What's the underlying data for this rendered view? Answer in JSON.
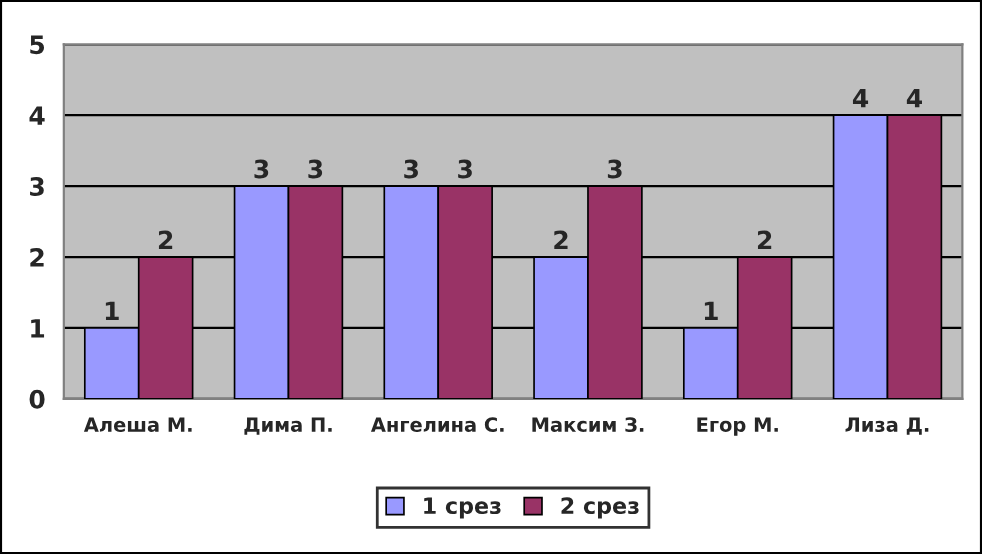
{
  "chart_data": {
    "type": "bar",
    "categories": [
      "Алеша М.",
      "Дима П.",
      "Ангелина С.",
      "Максим З.",
      "Егор М.",
      "Лиза Д."
    ],
    "series": [
      {
        "name": "1 срез",
        "color": "#9999ff",
        "values": [
          1,
          3,
          3,
          2,
          1,
          4
        ]
      },
      {
        "name": "2 срез",
        "color": "#993366",
        "values": [
          2,
          3,
          3,
          3,
          2,
          4
        ]
      }
    ],
    "ylim": [
      0,
      5
    ],
    "yticks": [
      0,
      1,
      2,
      3,
      4,
      5
    ],
    "grid": "y",
    "legend": "bottom",
    "data_labels": true
  }
}
